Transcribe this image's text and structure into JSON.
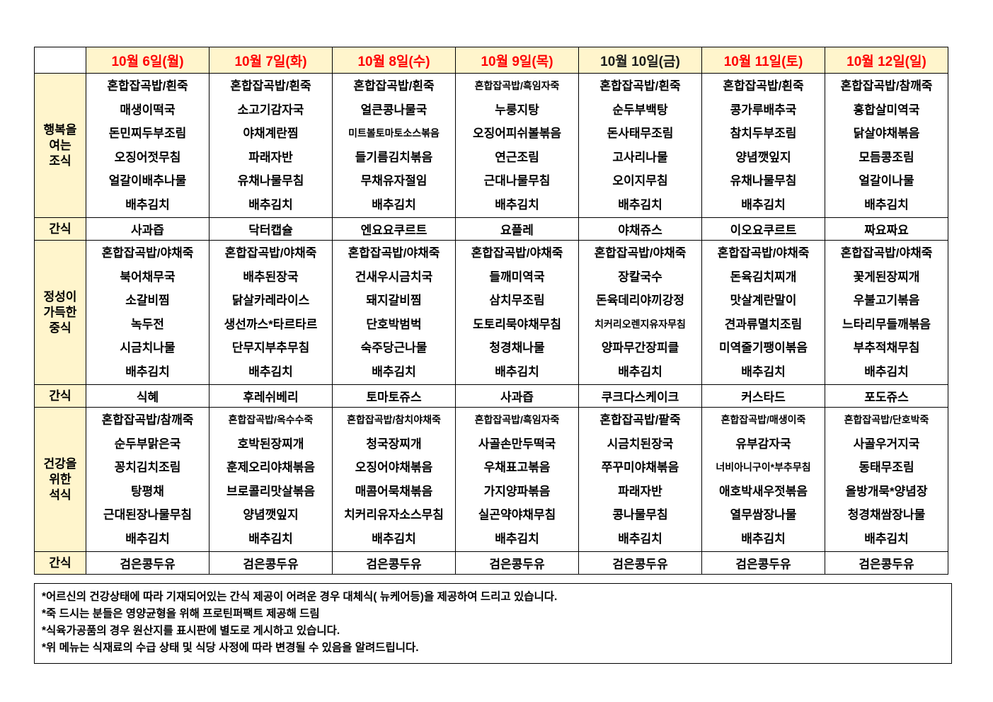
{
  "colors": {
    "header_bg": "#FFF5CC",
    "label_bg": "#FFF5CC",
    "date_red": "#FF0000",
    "date_black": "#1A1A1A",
    "border": "#000000"
  },
  "table": {
    "corner_label": "",
    "days": [
      {
        "text": "10월  6일(월)",
        "color": "#FF0000"
      },
      {
        "text": "10월  7일(화)",
        "color": "#FF0000"
      },
      {
        "text": "10월  8일(수)",
        "color": "#FF0000"
      },
      {
        "text": "10월  9일(목)",
        "color": "#FF0000"
      },
      {
        "text": "10월  10일(금)",
        "color": "#1A1A1A"
      },
      {
        "text": "10월  11일(토)",
        "color": "#FF0000"
      },
      {
        "text": "10월  12일(일)",
        "color": "#FF0000"
      }
    ],
    "meal_sections": [
      {
        "label_lines": [
          "행복을",
          "여는",
          "조식"
        ],
        "columns": [
          [
            "혼합잡곡밥/흰죽",
            "매생이떡국",
            "돈민찌두부조림",
            "오징어젓무침",
            "얼갈이배추나물",
            "배추김치"
          ],
          [
            "혼합잡곡밥/흰죽",
            "소고기감자국",
            "야채계란찜",
            "파래자반",
            "유채나물무침",
            "배추김치"
          ],
          [
            "혼합잡곡밥/흰죽",
            "얼큰콩나물국",
            "미트볼토마토소스볶음",
            "들기름김치볶음",
            "무채유자절임",
            "배추김치"
          ],
          [
            "혼합잡곡밥/흑임자죽",
            "누룽지탕",
            "오징어피쉬볼볶음",
            "연근조림",
            "근대나물무침",
            "배추김치"
          ],
          [
            "혼합잡곡밥/흰죽",
            "순두부백탕",
            "돈사태무조림",
            "고사리나물",
            "오이지무침",
            "배추김치"
          ],
          [
            "혼합잡곡밥/흰죽",
            "콩가루배추국",
            "참치두부조림",
            "양념깻잎지",
            "유채나물무침",
            "배추김치"
          ],
          [
            "혼합잡곡밥/참깨죽",
            "홍합살미역국",
            "닭살야채볶음",
            "모듬콩조림",
            "얼갈이나물",
            "배추김치"
          ]
        ],
        "snack": {
          "label": "간식",
          "items": [
            "사과즙",
            "닥터캡슐",
            "엔요요쿠르트",
            "요플레",
            "야채쥬스",
            "이오요쿠르트",
            "짜요짜요"
          ]
        }
      },
      {
        "label_lines": [
          "정성이",
          "가득한",
          "중식"
        ],
        "columns": [
          [
            "혼합잡곡밥/야채죽",
            "북어채무국",
            "소갈비찜",
            "녹두전",
            "시금치나물",
            "배추김치"
          ],
          [
            "혼합잡곡밥/야채죽",
            "배추된장국",
            "닭살카레라이스",
            "생선까스*타르타르",
            "단무지부추무침",
            "배추김치"
          ],
          [
            "혼합잡곡밥/야채죽",
            "건새우시금치국",
            "돼지갈비찜",
            "단호박범벅",
            "숙주당근나물",
            "배추김치"
          ],
          [
            "혼합잡곡밥/야채죽",
            "들깨미역국",
            "삼치무조림",
            "도토리묵야채무침",
            "청경채나물",
            "배추김치"
          ],
          [
            "혼합잡곡밥/야채죽",
            "장칼국수",
            "돈육데리야끼강정",
            "치커리오렌지유자무침",
            "양파무간장피클",
            "배추김치"
          ],
          [
            "혼합잡곡밥/야채죽",
            "돈육김치찌개",
            "맛살계란말이",
            "견과류멸치조림",
            "미역줄기팽이볶음",
            "배추김치"
          ],
          [
            "혼합잡곡밥/야채죽",
            "꽃게된장찌개",
            "우불고기볶음",
            "느타리무들깨볶음",
            "부추적채무침",
            "배추김치"
          ]
        ],
        "snack": {
          "label": "간식",
          "items": [
            "식혜",
            "후레쉬베리",
            "토마토쥬스",
            "사과즙",
            "쿠크다스케이크",
            "커스타드",
            "포도쥬스"
          ]
        }
      },
      {
        "label_lines": [
          "건강을",
          "위한",
          "석식"
        ],
        "columns": [
          [
            "혼합잡곡밥/참깨죽",
            "순두부맑은국",
            "꽁치김치조림",
            "탕평채",
            "근대된장나물무침",
            "배추김치"
          ],
          [
            "혼합잡곡밥/옥수수죽",
            "호박된장찌개",
            "훈제오리야채볶음",
            "브로콜리맛살볶음",
            "양념깻잎지",
            "배추김치"
          ],
          [
            "혼합잡곡밥/참치야채죽",
            "청국장찌개",
            "오징어야채볶음",
            "매콤어묵채볶음",
            "치커리유자소스무침",
            "배추김치"
          ],
          [
            "혼합잡곡밥/흑임자죽",
            "사골손만두떡국",
            "우채표고볶음",
            "가지양파볶음",
            "실곤약야채무침",
            "배추김치"
          ],
          [
            "혼합잡곡밥/팥죽",
            "시금치된장국",
            "쭈꾸미야채볶음",
            "파래자반",
            "콩나물무침",
            "배추김치"
          ],
          [
            "혼합잡곡밥/매생이죽",
            "유부감자국",
            "너비아니구이*부추무침",
            "애호박새우젓볶음",
            "열무쌈장나물",
            "배추김치"
          ],
          [
            "혼합잡곡밥/단호박죽",
            "사골우거지국",
            "동태무조림",
            "올방개묵*양념장",
            "청경채쌈장나물",
            "배추김치"
          ]
        ],
        "snack": {
          "label": "간식",
          "items": [
            "검은콩두유",
            "검은콩두유",
            "검은콩두유",
            "검은콩두유",
            "검은콩두유",
            "검은콩두유",
            "검은콩두유"
          ]
        }
      }
    ]
  },
  "notes": [
    "*어르신의 건강상태에 따라 기재되어있는 간식 제공이 어려운 경우 대체식( 뉴케어등)을 제공하여 드리고 있습니다.",
    "*죽 드시는 분들은 영양균형을 위해 프로틴퍼팩트 제공해 드림",
    "*식육가공품의 경우 원산지를 표시판에 별도로 게시하고 있습니다.",
    "*위 메뉴는 식재료의 수급 상태 및 식당 사정에 따라 변경될 수 있음을 알려드립니다."
  ]
}
